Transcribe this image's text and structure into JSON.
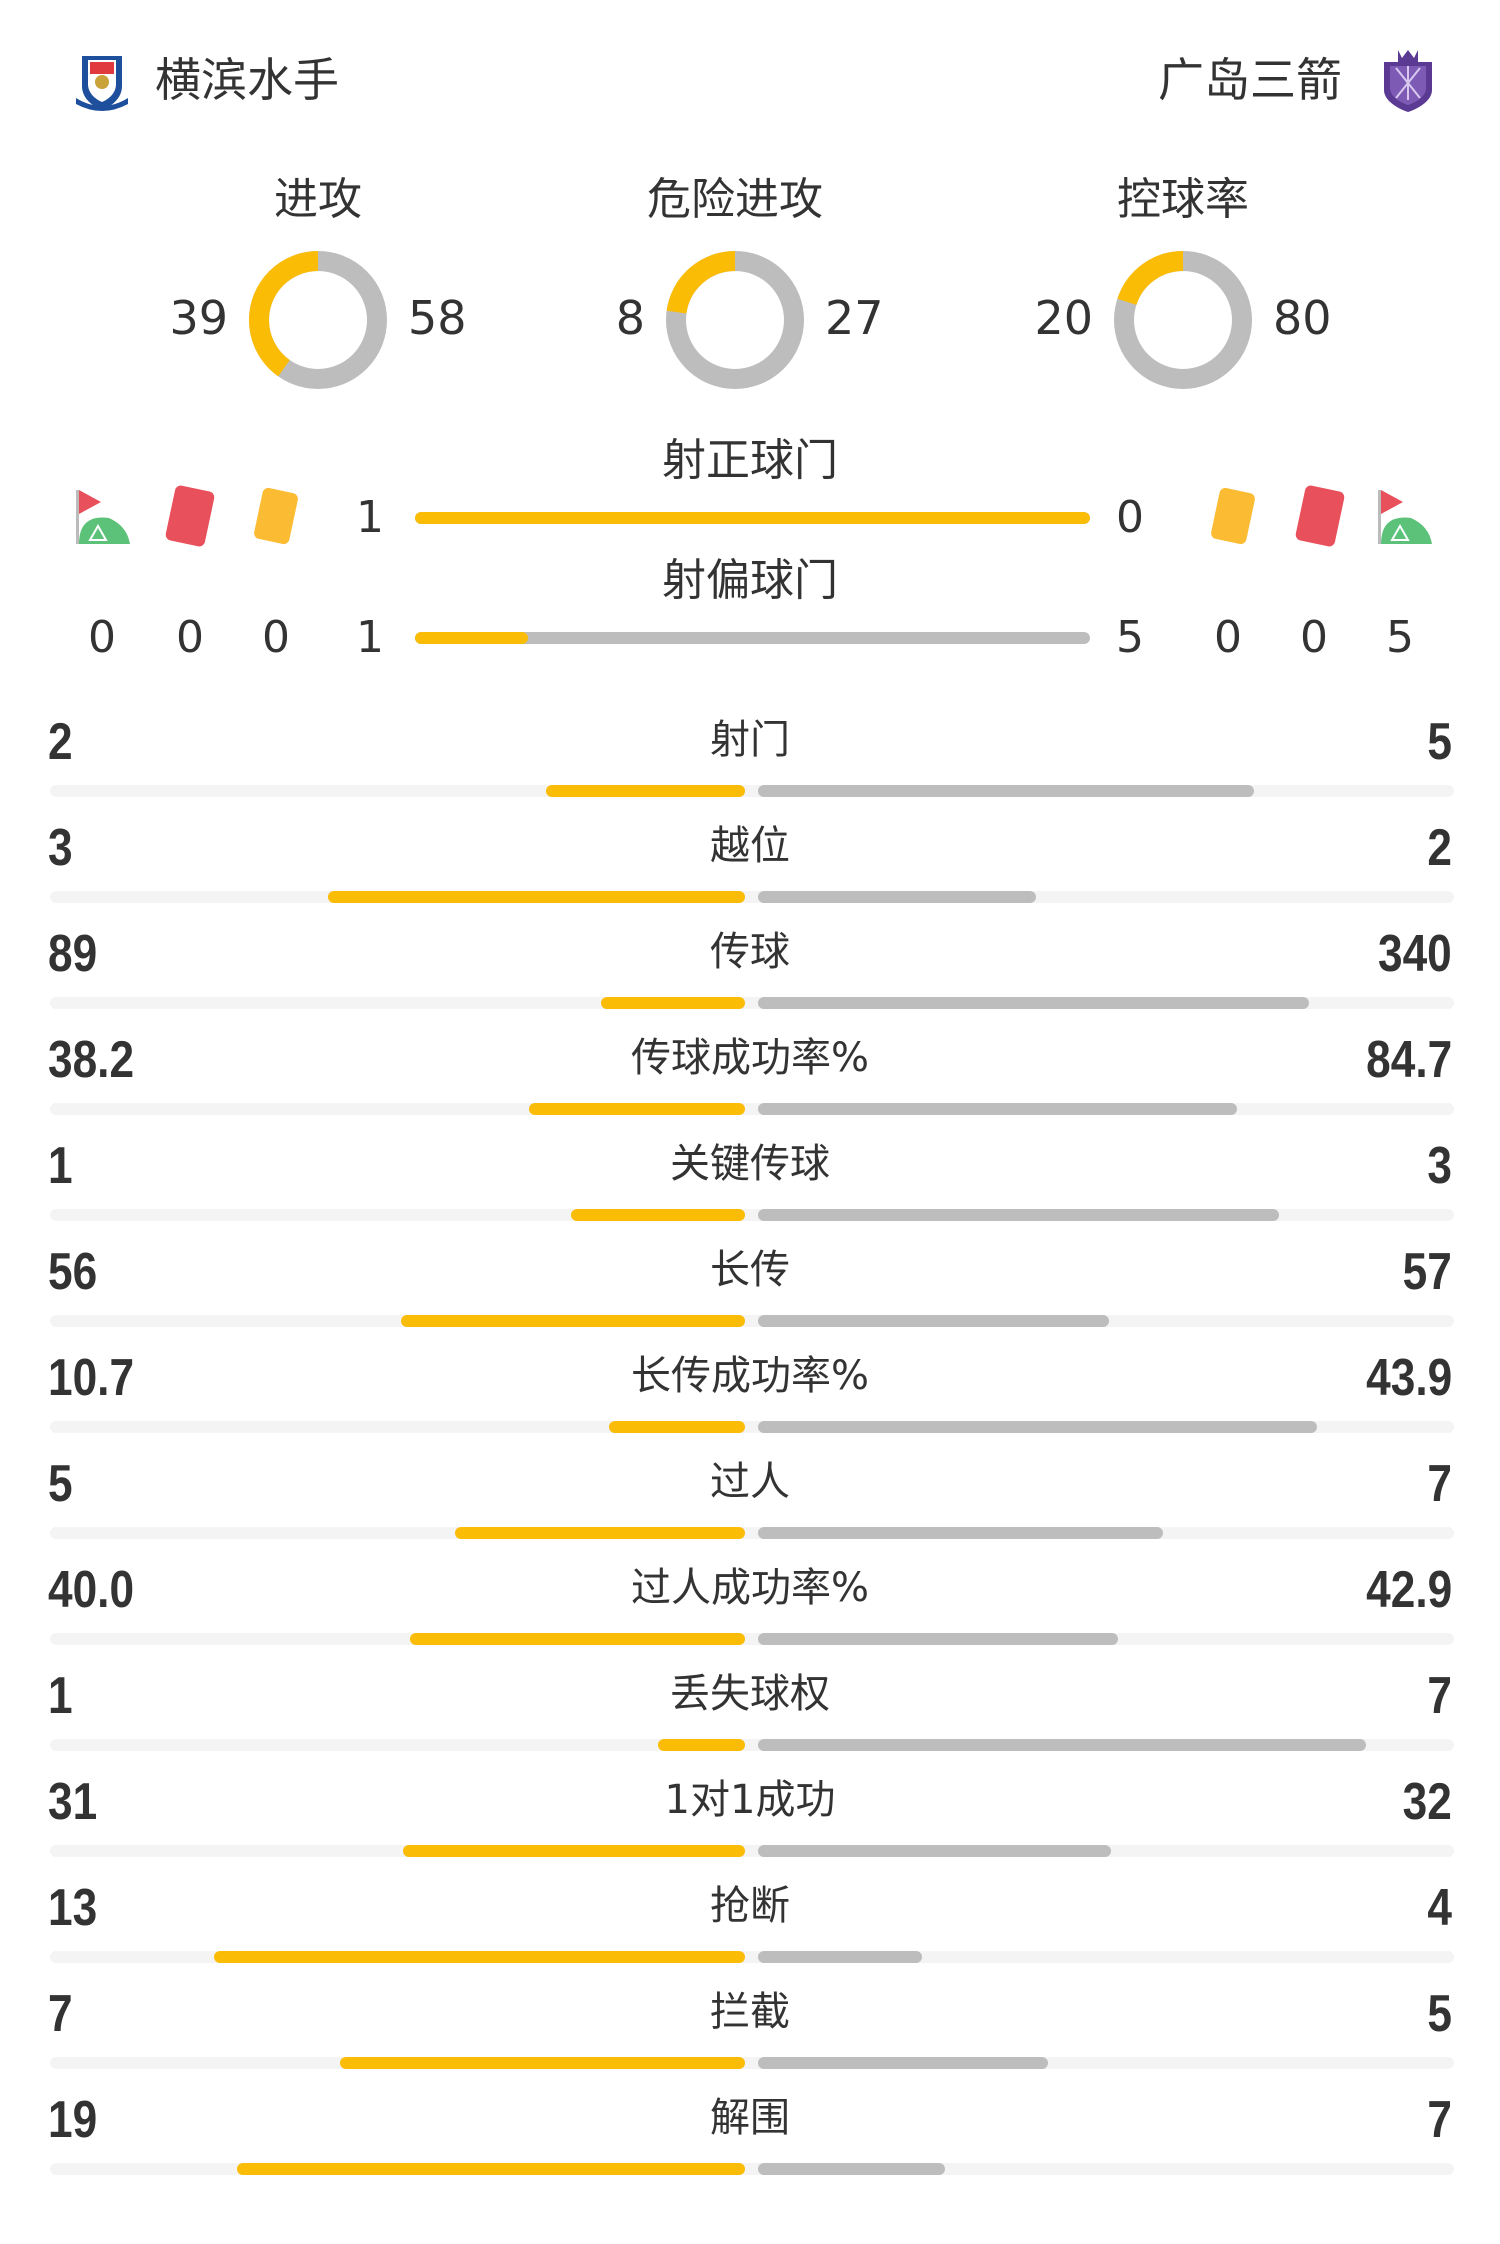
{
  "header": {
    "home_team": "横滨水手",
    "away_team": "广岛三箭"
  },
  "colors": {
    "home": "#fbbc05",
    "away": "#bdbdbd",
    "track": "#f4f4f4",
    "red_card": "#e8505b",
    "yellow_card": "#fbbc34",
    "corner": "#5cc27a"
  },
  "donuts": [
    {
      "title": "进攻",
      "home": "39",
      "away": "58"
    },
    {
      "title": "危险进攻",
      "home": "8",
      "away": "27"
    },
    {
      "title": "控球率",
      "home": "20",
      "away": "80"
    }
  ],
  "shots_on": {
    "label": "射正球门",
    "home": "1",
    "away": "0"
  },
  "shots_off": {
    "label": "射偏球门",
    "home": "1",
    "away": "5"
  },
  "events": {
    "icons": [
      "corner-flag-icon",
      "red-card-icon",
      "yellow-card-icon"
    ],
    "home": {
      "corners": "0",
      "red_cards": "0",
      "yellow_cards": "0"
    },
    "away": {
      "yellow_cards": "0",
      "red_cards": "0",
      "corners": "5"
    }
  },
  "stats": [
    {
      "label": "射门",
      "home": "2",
      "away": "5"
    },
    {
      "label": "越位",
      "home": "3",
      "away": "2"
    },
    {
      "label": "传球",
      "home": "89",
      "away": "340"
    },
    {
      "label": "传球成功率%",
      "home": "38.2",
      "away": "84.7"
    },
    {
      "label": "关键传球",
      "home": "1",
      "away": "3"
    },
    {
      "label": "长传",
      "home": "56",
      "away": "57"
    },
    {
      "label": "长传成功率%",
      "home": "10.7",
      "away": "43.9"
    },
    {
      "label": "过人",
      "home": "5",
      "away": "7"
    },
    {
      "label": "过人成功率%",
      "home": "40.0",
      "away": "42.9"
    },
    {
      "label": "丢失球权",
      "home": "1",
      "away": "7"
    },
    {
      "label": "1对1成功",
      "home": "31",
      "away": "32"
    },
    {
      "label": "抢断",
      "home": "13",
      "away": "4"
    },
    {
      "label": "拦截",
      "home": "7",
      "away": "5"
    },
    {
      "label": "解围",
      "home": "19",
      "away": "7"
    }
  ]
}
